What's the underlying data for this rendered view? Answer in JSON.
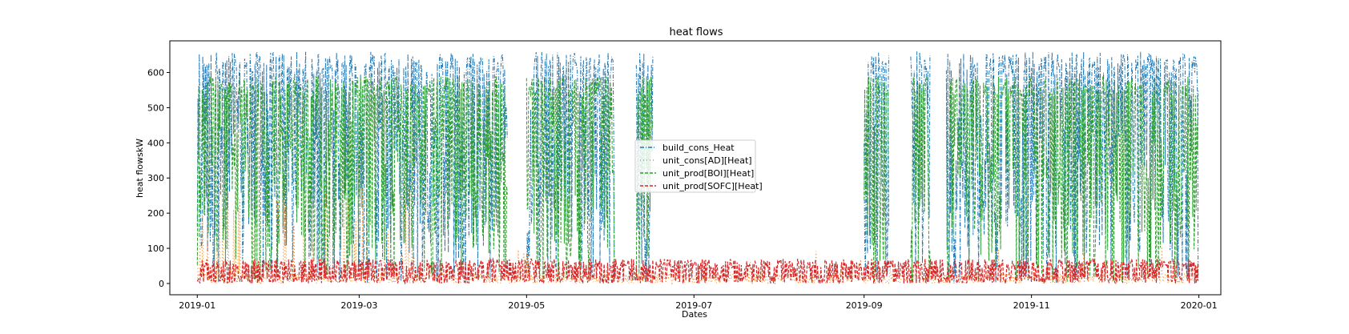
{
  "chart_data": {
    "type": "line",
    "title": "heat flows",
    "xlabel": "Dates",
    "ylabel": "heat flowskW",
    "x_range": [
      "2018-12-22",
      "2020-01-09"
    ],
    "ylim": [
      -32,
      690
    ],
    "x_ticks": [
      {
        "date": "2019-01-01",
        "label": "2019-01"
      },
      {
        "date": "2019-03-01",
        "label": "2019-03"
      },
      {
        "date": "2019-05-01",
        "label": "2019-05"
      },
      {
        "date": "2019-07-01",
        "label": "2019-07"
      },
      {
        "date": "2019-09-01",
        "label": "2019-09"
      },
      {
        "date": "2019-11-01",
        "label": "2019-11"
      },
      {
        "date": "2020-01-01",
        "label": "2020-01"
      }
    ],
    "y_ticks": [
      0,
      100,
      200,
      300,
      400,
      500,
      600
    ],
    "grid": false,
    "legend_position": "center",
    "series": [
      {
        "name": "build_cons_Heat",
        "color": "#1f77b4",
        "style": "dashdot",
        "pattern": "spiky, 0 to 660 kW during heating periods",
        "active_periods": [
          [
            "2019-01-01",
            "2019-04-23"
          ],
          [
            "2019-05-01",
            "2019-06-01"
          ],
          [
            "2019-06-10",
            "2019-06-15"
          ],
          [
            "2019-09-01",
            "2019-09-09"
          ],
          [
            "2019-09-18",
            "2019-09-24"
          ],
          [
            "2019-10-01",
            "2019-12-31"
          ]
        ],
        "peak_value": 660
      },
      {
        "name": "unit_cons[AD][Heat]",
        "color": "#ff7f0e",
        "style": "dotted",
        "pattern": "sparse, mostly below 100 kW, occasional peaks near 300 kW",
        "active_periods": [
          [
            "2019-01-01",
            "2019-12-31"
          ]
        ],
        "peak_value": 300
      },
      {
        "name": "unit_prod[BOI][Heat]",
        "color": "#2ca02c",
        "style": "dashed",
        "pattern": "spiky, 0 to 590 kW during heating periods",
        "active_periods": [
          [
            "2019-01-01",
            "2019-04-23"
          ],
          [
            "2019-05-01",
            "2019-06-01"
          ],
          [
            "2019-06-10",
            "2019-06-15"
          ],
          [
            "2019-09-01",
            "2019-09-09"
          ],
          [
            "2019-09-18",
            "2019-09-24"
          ],
          [
            "2019-10-01",
            "2019-12-31"
          ]
        ],
        "peak_value": 590
      },
      {
        "name": "unit_prod[SOFC][Heat]",
        "color": "#d62728",
        "style": "dashed",
        "pattern": "oscillating between about 0 and 70 kW all year",
        "active_periods": [
          [
            "2019-01-01",
            "2019-12-31"
          ]
        ],
        "peak_value": 70
      }
    ]
  }
}
